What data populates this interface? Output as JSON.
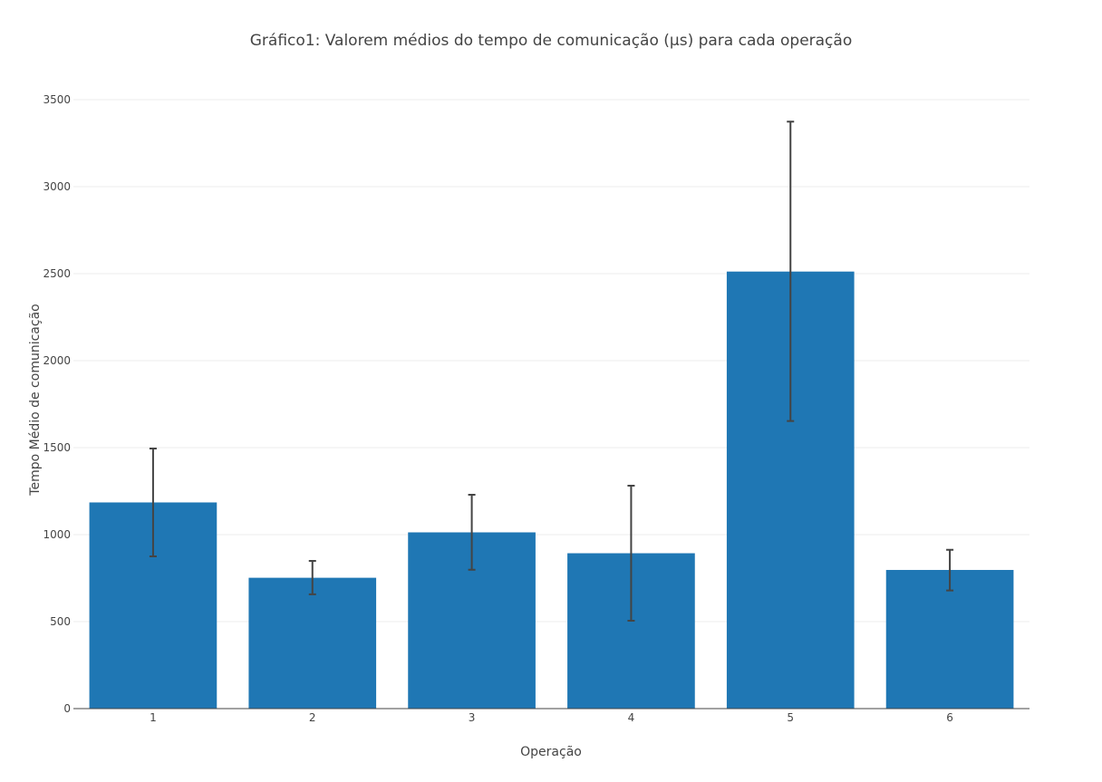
{
  "chart_data": {
    "type": "bar",
    "title": "Gráfico1: Valorem médios do tempo de comunicação (μs) para cada operação",
    "xlabel": "Operação",
    "ylabel": "Tempo Médio de comunicação",
    "categories": [
      "1",
      "2",
      "3",
      "4",
      "5",
      "6"
    ],
    "values": [
      1185,
      752,
      1013,
      893,
      2512,
      797
    ],
    "error_lower": [
      875,
      657,
      798,
      505,
      1653,
      679
    ],
    "error_upper": [
      1495,
      849,
      1229,
      1281,
      3374,
      913
    ],
    "ylim": [
      0,
      3500
    ],
    "yticks": [
      "0",
      "500",
      "1000",
      "1500",
      "2000",
      "2500",
      "3000",
      "3500"
    ],
    "bar_color": "#1f77b4",
    "error_bar_color": "#444444",
    "grid": true,
    "legend": "none"
  }
}
